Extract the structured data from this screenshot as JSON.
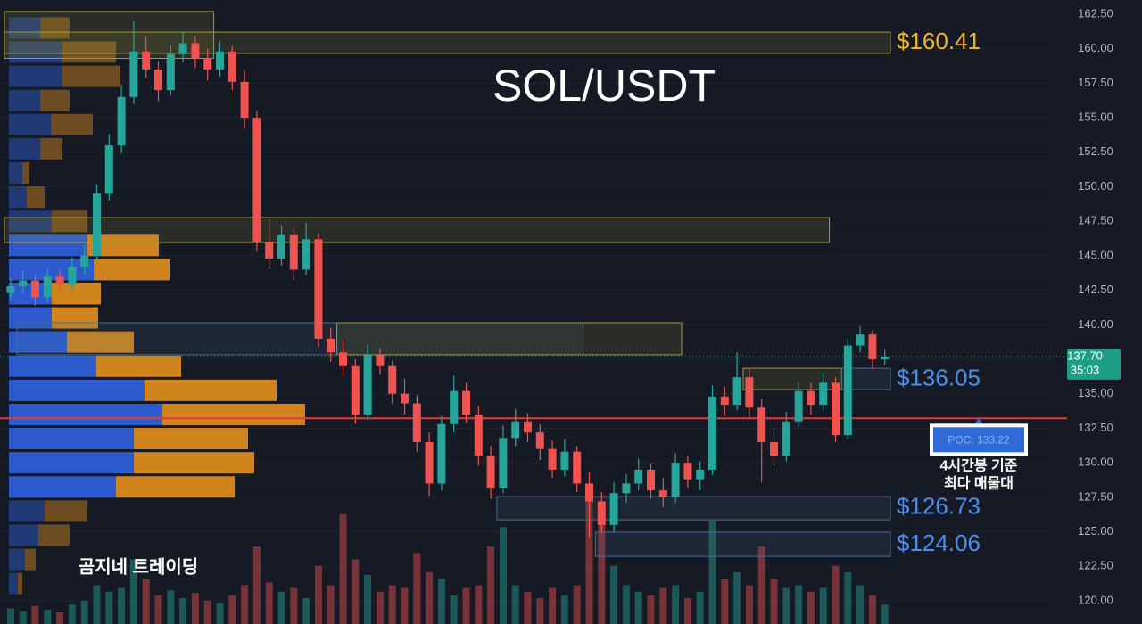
{
  "chart_data": {
    "type": "candlestick",
    "title": "SOL/USDT",
    "watermark": "곰지네 트레이딩",
    "ylim": [
      118.32,
      163.53
    ],
    "yticks": [
      {
        "value": 120,
        "label": "120.00"
      },
      {
        "value": 122.5,
        "label": "122.50"
      },
      {
        "value": 125,
        "label": "125.00"
      },
      {
        "value": 127.5,
        "label": "127.50"
      },
      {
        "value": 130,
        "label": "130.00"
      },
      {
        "value": 132.5,
        "label": "132.50"
      },
      {
        "value": 135,
        "label": "135.00"
      },
      {
        "value": 137.5,
        "label": "137.50"
      },
      {
        "value": 140,
        "label": "140.00"
      },
      {
        "value": 142.5,
        "label": "142.50"
      },
      {
        "value": 145,
        "label": "145.00"
      },
      {
        "value": 147.5,
        "label": "147.50"
      },
      {
        "value": 150,
        "label": "150.00"
      },
      {
        "value": 152.5,
        "label": "152.50"
      },
      {
        "value": 155,
        "label": "155.00"
      },
      {
        "value": 157.5,
        "label": "157.50"
      },
      {
        "value": 160,
        "label": "160.00"
      },
      {
        "value": 162.5,
        "label": "162.50"
      }
    ],
    "grid": true,
    "colors": {
      "up": "#26a69a",
      "down": "#ef5350",
      "buy": "#2e5fd6",
      "sell": "#d98a1c"
    },
    "ohlc": {
      "open": [
        142.3,
        142.8,
        143.2,
        142.0,
        143.5,
        142.9,
        144.2,
        145.0,
        149.5,
        153.0,
        156.5,
        159.8,
        158.5,
        157.0,
        159.6,
        160.4,
        159.3,
        158.5,
        159.8,
        157.6,
        155.0,
        146.0,
        144.8,
        146.5,
        144.0,
        146.2,
        139.0,
        138.0,
        137.0,
        133.5,
        137.8,
        137.0,
        135.0,
        134.3,
        131.5,
        128.5,
        132.8,
        135.2,
        133.5,
        130.5,
        128.2,
        131.8,
        133.0,
        132.2,
        131.0,
        129.5,
        130.8,
        128.5,
        127.2,
        125.5,
        127.8,
        128.5,
        129.5,
        128.0,
        127.5,
        130.0,
        128.8,
        129.5,
        134.8,
        134.2,
        136.2,
        134.0,
        131.5,
        130.5,
        133.0,
        135.2,
        134.2,
        135.8,
        132.0,
        138.5,
        139.3,
        137.5
      ],
      "high": [
        143.4,
        143.9,
        143.6,
        144.1,
        144.0,
        144.9,
        145.8,
        150.2,
        153.8,
        157.4,
        162.0,
        160.9,
        159.1,
        160.3,
        161.2,
        160.9,
        160.0,
        160.6,
        160.2,
        158.4,
        155.5,
        147.6,
        147.2,
        147.0,
        147.4,
        146.6,
        139.8,
        138.9,
        137.5,
        138.6,
        138.3,
        137.4,
        136.1,
        134.9,
        132.2,
        133.4,
        136.3,
        135.8,
        134.1,
        131.2,
        132.7,
        133.9,
        133.6,
        132.8,
        131.6,
        131.7,
        131.2,
        129.3,
        127.9,
        128.6,
        129.2,
        130.3,
        130.0,
        128.9,
        130.7,
        130.5,
        130.1,
        135.6,
        135.5,
        138.0,
        136.8,
        134.6,
        132.2,
        133.7,
        135.9,
        135.8,
        136.6,
        136.2,
        139.0,
        139.9,
        139.6,
        138.2
      ],
      "low": [
        141.8,
        142.2,
        141.4,
        141.6,
        142.3,
        142.5,
        143.6,
        144.7,
        149.0,
        152.4,
        156.0,
        157.9,
        156.2,
        156.6,
        159.0,
        158.6,
        157.7,
        158.0,
        157.0,
        154.2,
        145.3,
        144.0,
        144.3,
        143.2,
        143.6,
        138.4,
        137.3,
        136.2,
        132.8,
        133.1,
        136.4,
        134.3,
        133.5,
        130.8,
        127.6,
        128.0,
        132.2,
        132.9,
        129.8,
        127.4,
        127.8,
        131.2,
        131.5,
        130.2,
        128.9,
        129.0,
        127.9,
        124.6,
        124.9,
        125.0,
        127.1,
        128.0,
        127.4,
        126.8,
        127.1,
        128.2,
        128.0,
        129.1,
        133.4,
        133.8,
        133.2,
        128.6,
        129.8,
        130.1,
        132.6,
        133.5,
        133.8,
        131.5,
        131.7,
        138.0,
        136.8,
        137.1
      ],
      "close": [
        142.8,
        143.2,
        142.0,
        143.5,
        142.9,
        144.2,
        145.0,
        149.5,
        153.0,
        156.5,
        159.8,
        158.5,
        157.0,
        159.6,
        160.4,
        159.3,
        158.5,
        159.8,
        157.6,
        155.0,
        146.0,
        144.8,
        146.5,
        144.0,
        146.2,
        139.0,
        138.0,
        137.0,
        133.5,
        137.8,
        137.0,
        135.0,
        134.3,
        131.5,
        128.5,
        132.8,
        135.2,
        133.5,
        130.5,
        128.2,
        131.8,
        133.0,
        132.2,
        131.0,
        129.5,
        130.8,
        128.5,
        127.2,
        125.5,
        127.8,
        128.5,
        129.5,
        128.0,
        127.5,
        130.0,
        128.8,
        129.5,
        134.8,
        134.2,
        136.2,
        134.0,
        131.5,
        130.5,
        133.0,
        135.2,
        134.2,
        135.8,
        132.0,
        138.5,
        139.3,
        137.5,
        137.7
      ]
    },
    "volume": [
      12,
      10,
      14,
      11,
      9,
      15,
      18,
      30,
      25,
      28,
      50,
      35,
      22,
      26,
      20,
      24,
      18,
      16,
      22,
      30,
      60,
      32,
      25,
      28,
      20,
      45,
      30,
      85,
      50,
      38,
      25,
      30,
      28,
      55,
      40,
      35,
      22,
      28,
      30,
      60,
      75,
      30,
      25,
      20,
      28,
      22,
      30,
      100,
      85,
      45,
      30,
      25,
      22,
      28,
      30,
      20,
      25,
      80,
      35,
      40,
      30,
      60,
      35,
      28,
      30,
      25,
      28,
      45,
      40,
      30,
      22,
      15
    ],
    "volume_profile": {
      "prices": [
        161.5,
        159.75,
        158.0,
        156.25,
        154.5,
        152.75,
        151.0,
        149.25,
        147.5,
        145.75,
        144.0,
        142.25,
        140.5,
        138.75,
        137.0,
        135.25,
        133.5,
        131.75,
        130.0,
        128.25,
        126.5,
        124.75,
        123.0,
        121.25
      ],
      "buy": [
        35,
        60,
        60,
        35,
        47,
        35,
        15,
        20,
        48,
        88,
        95,
        48,
        48,
        65,
        98,
        152,
        172,
        140,
        140,
        120,
        40,
        33,
        18,
        10
      ],
      "sell": [
        33,
        60,
        65,
        33,
        47,
        25,
        8,
        20,
        40,
        80,
        85,
        55,
        52,
        75,
        95,
        148,
        160,
        128,
        135,
        133,
        48,
        35,
        12,
        5
      ]
    },
    "zones": [
      {
        "high": 162.7,
        "low": 159.3,
        "from": 0,
        "to": 17,
        "color": "#a39a3a"
      },
      {
        "label": "$160.41",
        "value": 160.41,
        "high": 161.2,
        "low": 159.66,
        "from": 0,
        "to": 72,
        "color": "#a39a3a",
        "text_color": "#f0b429"
      },
      {
        "high": 147.77,
        "low": 145.96,
        "from": 0,
        "to": 67,
        "color": "#a39a3a"
      },
      {
        "high": 140.15,
        "low": 137.83,
        "from": 1,
        "to": 47,
        "color": "#4a6e96"
      },
      {
        "high": 140.15,
        "low": 137.83,
        "from": 27,
        "to": 55,
        "color": "#a39a3a"
      },
      {
        "high": 136.85,
        "low": 135.3,
        "from": 60,
        "to": 68,
        "color": "#a39a3a"
      },
      {
        "label": "$136.05",
        "value": 136.05,
        "high": 136.85,
        "low": 135.3,
        "from": 68,
        "to": 72,
        "color": "#4a6e96",
        "text_color": "#4d8ff0"
      },
      {
        "label": "$126.73",
        "value": 126.73,
        "high": 127.55,
        "low": 125.87,
        "from": 40,
        "to": 72,
        "color": "#4a6e96",
        "text_color": "#4d8ff0"
      },
      {
        "label": "$124.06",
        "value": 124.06,
        "high": 124.97,
        "low": 123.22,
        "from": 48,
        "to": 72,
        "color": "#4a6e96",
        "text_color": "#4d8ff0"
      }
    ],
    "poc": {
      "label": "POC: 133.22",
      "value": 133.22,
      "note": [
        "4시간봉 기준",
        "최다 매물대"
      ],
      "color": "#e53935"
    },
    "last_price": {
      "label": "137.70",
      "value": 137.7,
      "countdown": "35:03",
      "color": "#1e9e86"
    }
  }
}
